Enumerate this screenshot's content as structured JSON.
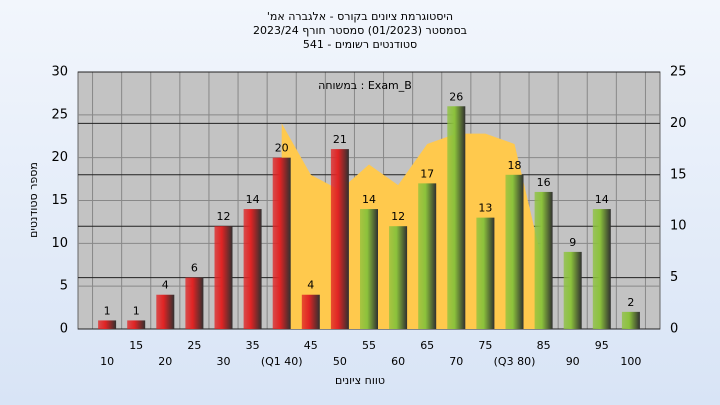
{
  "chart_data": {
    "type": "bar",
    "title": "היסטוגרמת ציונים בקורס - אלגברה אמ'",
    "subtitle": "בסמסטר (01/2023) סמסטר חורף 2023/24",
    "subtitle2": "סטודנטים רשומים - 541",
    "annotation": "במשוחה : Exam_B",
    "x_label": "טווח ציונים",
    "y_label": "מספר סטודנטים",
    "categories": [
      "10",
      "15",
      "20",
      "25",
      "30",
      "35",
      "(Q1 40)",
      "45",
      "50",
      "55",
      "60",
      "65",
      "70",
      "75",
      "(Q3 80)",
      "85",
      "90",
      "95",
      "100"
    ],
    "values": [
      1,
      1,
      4,
      6,
      12,
      14,
      20,
      4,
      21,
      14,
      12,
      17,
      26,
      13,
      18,
      16,
      9,
      14,
      2
    ],
    "colors": [
      "#e02424",
      "#e02424",
      "#e02424",
      "#e02424",
      "#e02424",
      "#e02424",
      "#e02424",
      "#e02424",
      "#e02424",
      "#8cc23c",
      "#8cc23c",
      "#8cc23c",
      "#8cc23c",
      "#8cc23c",
      "#8cc23c",
      "#8cc23c",
      "#8cc23c",
      "#8cc23c",
      "#8cc23c"
    ],
    "area": {
      "type": "area",
      "axis": "y2",
      "color": "#ffc94d",
      "values": [
        null,
        null,
        null,
        null,
        null,
        null,
        20,
        15,
        13.5,
        16,
        14,
        18,
        19,
        19,
        18,
        6,
        null,
        null,
        null
      ]
    },
    "ylim": [
      0,
      30
    ],
    "yticks": [
      0,
      5,
      10,
      15,
      20,
      25,
      30
    ],
    "y2lim": [
      0,
      25
    ],
    "y2ticks": [
      0,
      5,
      10,
      15,
      20,
      25
    ],
    "grid": true
  }
}
